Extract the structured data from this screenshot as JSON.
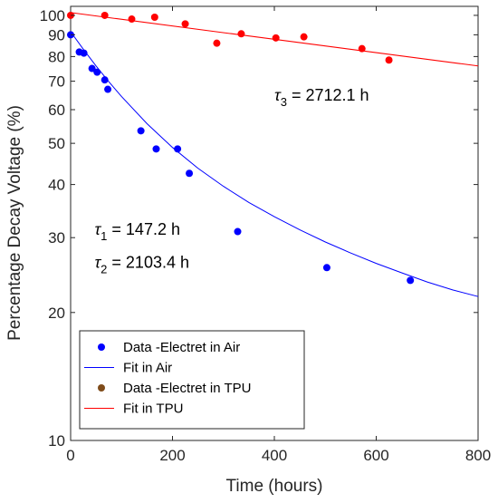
{
  "chart_data": {
    "type": "scatter",
    "xlabel": "Time (hours)",
    "ylabel": "Percentage Decay Voltage (%)",
    "xlim": [
      0,
      800
    ],
    "ylim": [
      10,
      105
    ],
    "yscale": "log",
    "grid": false,
    "legend_placement": "bottom-left",
    "x_ticks": [
      "0",
      "200",
      "400",
      "600",
      "800"
    ],
    "y_ticks": [
      {
        "value": 10,
        "label": "10"
      },
      {
        "value": 20,
        "label": "20"
      },
      {
        "value": 30,
        "label": "30"
      },
      {
        "value": 40,
        "label": "40"
      },
      {
        "value": 50,
        "label": "50"
      },
      {
        "value": 60,
        "label": "60"
      },
      {
        "value": 70,
        "label": "70"
      },
      {
        "value": 80,
        "label": "80"
      },
      {
        "value": 90,
        "label": "90"
      },
      {
        "value": 100,
        "label": "100"
      }
    ],
    "series": [
      {
        "name": "Data -Electret in Air",
        "kind": "scatter",
        "color": "#0000ff",
        "points": [
          {
            "x": 0,
            "y": 90
          },
          {
            "x": 17,
            "y": 82
          },
          {
            "x": 26,
            "y": 81.5
          },
          {
            "x": 42,
            "y": 75
          },
          {
            "x": 52,
            "y": 73.5
          },
          {
            "x": 67,
            "y": 70.5
          },
          {
            "x": 73,
            "y": 67
          },
          {
            "x": 138,
            "y": 53.5
          },
          {
            "x": 168,
            "y": 48.5
          },
          {
            "x": 210,
            "y": 48.5
          },
          {
            "x": 233,
            "y": 42.5
          },
          {
            "x": 328,
            "y": 31
          },
          {
            "x": 503,
            "y": 25.5
          },
          {
            "x": 667,
            "y": 23.8
          }
        ]
      },
      {
        "name": "Fit in Air",
        "kind": "line",
        "color": "#0000ff",
        "points": [
          {
            "x": 0,
            "y": 91.5
          },
          {
            "x": 25,
            "y": 83.2
          },
          {
            "x": 50,
            "y": 76.0
          },
          {
            "x": 75,
            "y": 69.8
          },
          {
            "x": 100,
            "y": 64.4
          },
          {
            "x": 150,
            "y": 55.6
          },
          {
            "x": 200,
            "y": 48.9
          },
          {
            "x": 250,
            "y": 43.7
          },
          {
            "x": 300,
            "y": 39.6
          },
          {
            "x": 350,
            "y": 36.3
          },
          {
            "x": 400,
            "y": 33.6
          },
          {
            "x": 450,
            "y": 31.3
          },
          {
            "x": 500,
            "y": 29.3
          },
          {
            "x": 550,
            "y": 27.6
          },
          {
            "x": 600,
            "y": 26.1
          },
          {
            "x": 650,
            "y": 24.8
          },
          {
            "x": 700,
            "y": 23.6
          },
          {
            "x": 750,
            "y": 22.6
          },
          {
            "x": 800,
            "y": 21.8
          }
        ]
      },
      {
        "name": "Data -Electret in TPU",
        "kind": "scatter",
        "color": "#ff0000",
        "legend_color": "#7f4c1a",
        "points": [
          {
            "x": 0,
            "y": 100
          },
          {
            "x": 67,
            "y": 100
          },
          {
            "x": 120,
            "y": 98
          },
          {
            "x": 165,
            "y": 99
          },
          {
            "x": 225,
            "y": 95.5
          },
          {
            "x": 287,
            "y": 86
          },
          {
            "x": 335,
            "y": 90.5
          },
          {
            "x": 403,
            "y": 88.5
          },
          {
            "x": 458,
            "y": 89
          },
          {
            "x": 572,
            "y": 83.5
          },
          {
            "x": 625,
            "y": 78.5
          }
        ]
      },
      {
        "name": "Fit in TPU",
        "kind": "line",
        "color": "#ff0000",
        "points": [
          {
            "x": 0,
            "y": 101.5
          },
          {
            "x": 800,
            "y": 76
          }
        ]
      }
    ],
    "annotations": [
      {
        "text": "τ",
        "sub": "3",
        "rest": " = 2712.1 h",
        "x": 400,
        "y": 63
      },
      {
        "text": "τ",
        "sub": "1",
        "rest": " = 147.2 h",
        "x": 47,
        "y": 30.5
      },
      {
        "text": "τ",
        "sub": "2",
        "rest": " = 2103.4 h",
        "x": 47,
        "y": 25.5
      }
    ]
  }
}
